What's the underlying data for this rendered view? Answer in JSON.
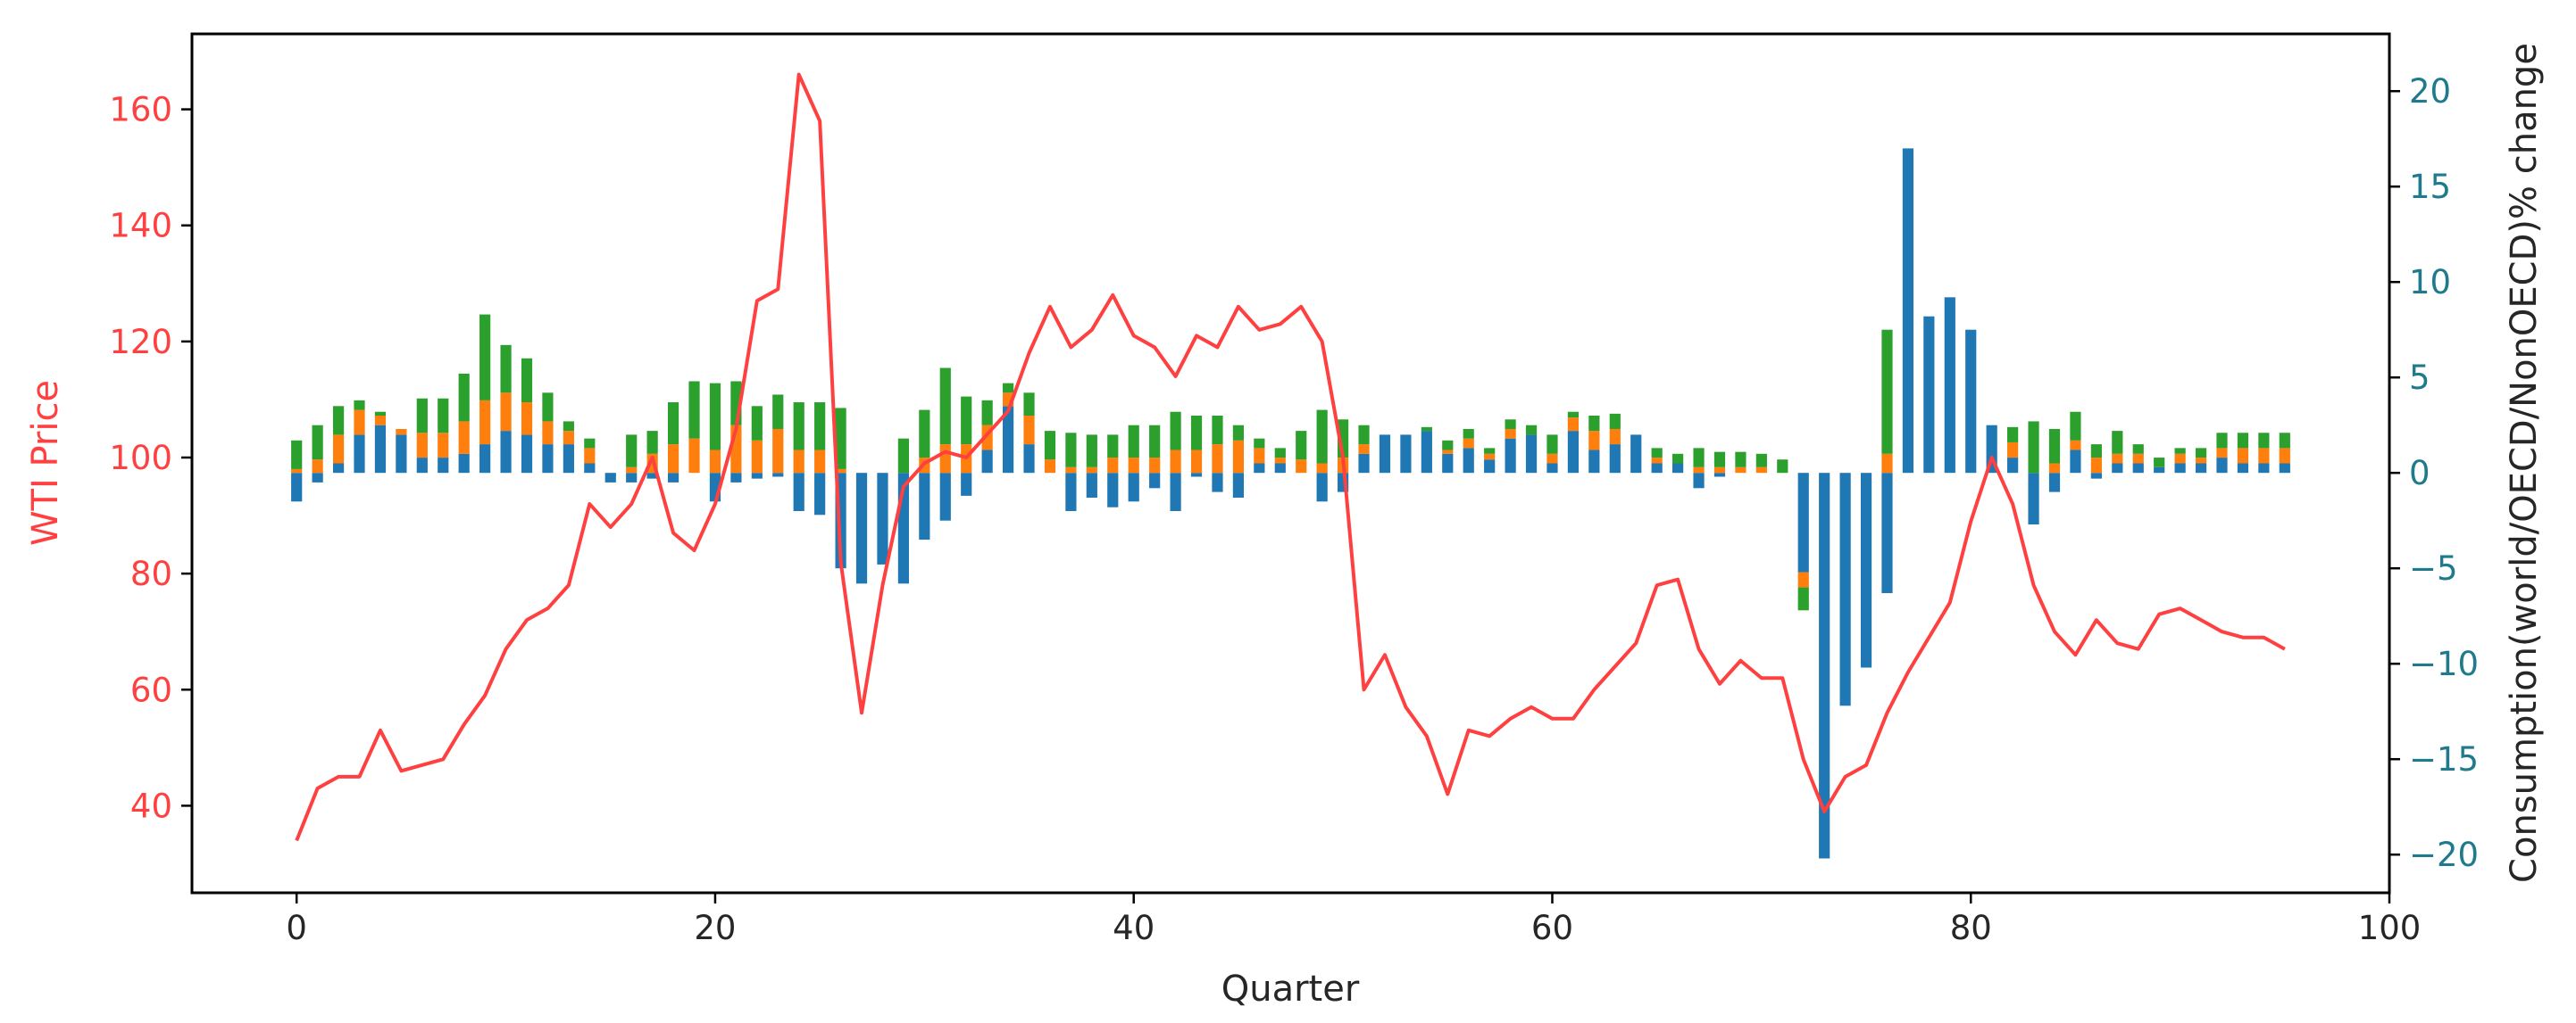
{
  "chart_data": {
    "type": "bar",
    "xlabel": "Quarter",
    "ylabel_left": "WTI Price",
    "ylabel_right": "Consumption(world/OECD/NonOECD)% change",
    "xlim": [
      -5,
      100
    ],
    "ylim_left": [
      25,
      173
    ],
    "ylim_right": [
      -22,
      23
    ],
    "x_ticks": [
      0,
      20,
      40,
      60,
      80,
      100
    ],
    "y_left_ticks": [
      40,
      60,
      80,
      100,
      120,
      140,
      160
    ],
    "y_right_ticks": [
      -20,
      -15,
      -10,
      -5,
      0,
      5,
      10,
      15,
      20
    ],
    "grid": false,
    "colors": {
      "price": "#ff4040",
      "world": "#1f77b4",
      "oecd": "#ff7f0e",
      "nonoecd": "#2ca02c",
      "left_tick": "#ff4040",
      "right_tick": "#1f7a8c"
    },
    "x": [
      0,
      1,
      2,
      3,
      4,
      5,
      6,
      7,
      8,
      9,
      10,
      11,
      12,
      13,
      14,
      15,
      16,
      17,
      18,
      19,
      20,
      21,
      22,
      23,
      24,
      25,
      26,
      27,
      28,
      29,
      30,
      31,
      32,
      33,
      34,
      35,
      36,
      37,
      38,
      39,
      40,
      41,
      42,
      43,
      44,
      45,
      46,
      47,
      48,
      49,
      50,
      51,
      52,
      53,
      54,
      55,
      56,
      57,
      58,
      59,
      60,
      61,
      62,
      63,
      64,
      65,
      66,
      67,
      68,
      69,
      70,
      71,
      72,
      73,
      74,
      75,
      76,
      77,
      78,
      79,
      80,
      81,
      82,
      83,
      84,
      85,
      86,
      87,
      88,
      89,
      90,
      91,
      92,
      93,
      94,
      95
    ],
    "series": [
      {
        "key": "price",
        "axis": "left",
        "kind": "line",
        "values": [
          34,
          43,
          45,
          45,
          53,
          46,
          47,
          48,
          54,
          59,
          67,
          72,
          74,
          78,
          92,
          88,
          92,
          100,
          87,
          84,
          92,
          105,
          127,
          129,
          166,
          158,
          82,
          56,
          78,
          95,
          99,
          101,
          100,
          104,
          108,
          118,
          126,
          119,
          122,
          128,
          121,
          119,
          114,
          121,
          119,
          126,
          122,
          123,
          126,
          120,
          100,
          60,
          66,
          57,
          52,
          42,
          53,
          52,
          55,
          57,
          55,
          55,
          60,
          64,
          68,
          78,
          79,
          67,
          61,
          65,
          62,
          62,
          48,
          39,
          45,
          47,
          56,
          63,
          69,
          75,
          89,
          100,
          92,
          78,
          70,
          66,
          72,
          68,
          67,
          73,
          74,
          72,
          70,
          69,
          69,
          67
        ]
      },
      {
        "key": "world",
        "axis": "right",
        "kind": "bar",
        "values": [
          -1.5,
          -0.5,
          0.5,
          2,
          2.5,
          2,
          0.8,
          0.8,
          1,
          1.5,
          2.2,
          2,
          1.5,
          1.5,
          0.5,
          -0.5,
          -0.5,
          -0.3,
          -0.5,
          0,
          -1.5,
          -0.5,
          -0.3,
          -0.2,
          -2,
          -2.2,
          -5,
          -5.8,
          -4.8,
          -5.8,
          -3.5,
          -2.5,
          -1.2,
          1.2,
          3.5,
          1.5,
          0,
          -2,
          -1.3,
          -1.8,
          -1.5,
          -0.8,
          -2,
          -0.2,
          -1,
          -1.3,
          0.5,
          0.5,
          0,
          -1.5,
          -1,
          1,
          2,
          2,
          2.2,
          1,
          1.3,
          0.7,
          1.8,
          2,
          0.5,
          2.2,
          1.2,
          1.5,
          2,
          0.5,
          0.5,
          -0.8,
          -0.2,
          0,
          0,
          0,
          -5.2,
          -20.2,
          -12.2,
          -10.2,
          -6.3,
          17,
          8.2,
          9.2,
          7.5,
          2.5,
          0.8,
          -2.7,
          -1,
          1.2,
          -0.3,
          0.5,
          0.5,
          0.3,
          0.5,
          0.5,
          0.8,
          0.5,
          0.5,
          0.5
        ]
      },
      {
        "key": "oecd",
        "axis": "right",
        "kind": "bar",
        "values": [
          0.2,
          0.7,
          1.5,
          1.3,
          0.5,
          0.3,
          1.3,
          1.3,
          1.7,
          2.3,
          2,
          1.7,
          1.2,
          0.7,
          0.8,
          0,
          0.3,
          1,
          1.5,
          1.8,
          1.2,
          2.5,
          1.7,
          2.3,
          1.2,
          1.2,
          0.2,
          0,
          0,
          0,
          0.8,
          1.5,
          1.5,
          1.3,
          0.7,
          1.5,
          0.7,
          0.3,
          0.3,
          0.8,
          0.8,
          0.8,
          1.2,
          1.2,
          1.5,
          1.7,
          0.8,
          0.3,
          0.7,
          0.5,
          0.8,
          0.5,
          0,
          0,
          0,
          0.2,
          0.5,
          0.3,
          0.5,
          0,
          0.5,
          0.7,
          1,
          0.8,
          0,
          0.3,
          0,
          0.3,
          0.3,
          0.3,
          0.3,
          0,
          -0.8,
          0,
          0,
          0,
          1,
          0,
          0,
          0,
          0,
          0,
          0.8,
          0,
          0.5,
          0.5,
          0.8,
          0.5,
          0.5,
          0,
          0.5,
          0.3,
          0.5,
          0.8,
          0.8,
          0.8
        ]
      },
      {
        "key": "nonoecd",
        "axis": "right",
        "kind": "bar",
        "values": [
          1.5,
          1.8,
          1.5,
          0.5,
          0.2,
          0,
          1.8,
          1.8,
          2.5,
          4.5,
          2.5,
          2.3,
          1.5,
          0.5,
          0.5,
          0,
          1.7,
          1.2,
          2.2,
          3,
          3.5,
          2.3,
          1.8,
          1.8,
          2.5,
          2.5,
          3.2,
          0,
          0,
          1.8,
          2.5,
          4,
          2.5,
          1.3,
          0.5,
          1.2,
          1.5,
          1.8,
          1.7,
          1.2,
          1.7,
          1.7,
          2,
          1.8,
          1.5,
          0.8,
          0.5,
          0.5,
          1.5,
          2.8,
          2,
          1,
          0,
          0,
          0.2,
          0.5,
          0.5,
          0.3,
          0.5,
          0.5,
          1,
          0.3,
          0.8,
          0.8,
          0,
          0.5,
          0.5,
          1,
          0.8,
          0.8,
          0.7,
          0.7,
          -1.2,
          0,
          0,
          0,
          6.5,
          0,
          0,
          0,
          0,
          0,
          0.8,
          2.7,
          1.8,
          1.5,
          0.7,
          1.2,
          0.5,
          0.5,
          0.3,
          0.5,
          0.8,
          0.8,
          0.8,
          0.8
        ]
      }
    ]
  }
}
